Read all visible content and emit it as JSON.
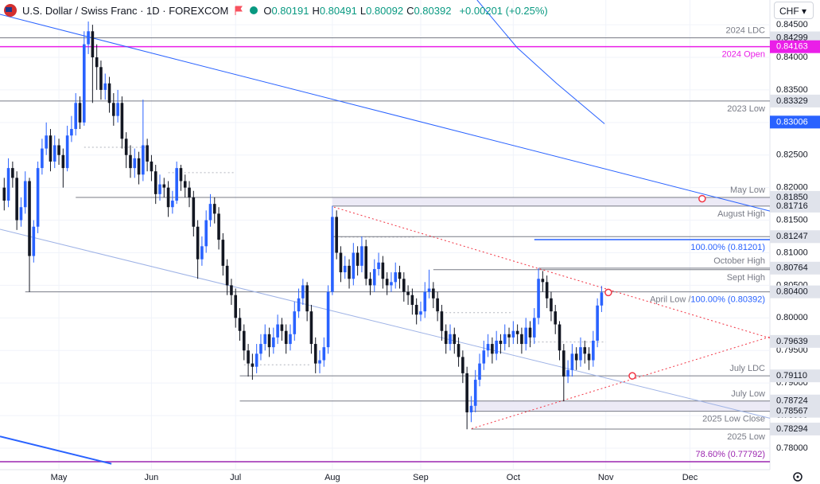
{
  "chart_data": {
    "type": "candlestick",
    "title": "U.S. Dollar / Swiss Franc · 1D · FOREXCOM",
    "legend": [
      {
        "key": "O",
        "value": 0.80191
      },
      {
        "key": "H",
        "value": 0.80491
      },
      {
        "key": "L",
        "value": 0.80092
      },
      {
        "key": "C",
        "value": 0.80392
      }
    ],
    "change": "+0.00201 (+0.25%)",
    "currency": "CHF",
    "up_color": "#2962ff",
    "down_color": "#131722",
    "grid": true,
    "xlim": [
      -1,
      182
    ],
    "ylim": [
      0.7767,
      0.8488
    ],
    "xticks": [
      {
        "value": 13,
        "label": "May"
      },
      {
        "value": 35,
        "label": "Jun"
      },
      {
        "value": 55,
        "label": "Jul"
      },
      {
        "value": 78,
        "label": "Aug"
      },
      {
        "value": 99,
        "label": "Sep"
      },
      {
        "value": 121,
        "label": "Oct"
      },
      {
        "value": 143,
        "label": "Nov"
      },
      {
        "value": 163,
        "label": "Dec"
      }
    ],
    "yticks": [
      {
        "value": 0.845,
        "label": "0.84500"
      },
      {
        "value": 0.84,
        "label": "0.84000"
      },
      {
        "value": 0.835,
        "label": "0.83500"
      },
      {
        "value": 0.83,
        "label": "0.83000"
      },
      {
        "value": 0.825,
        "label": "0.82500"
      },
      {
        "value": 0.82,
        "label": "0.82000"
      },
      {
        "value": 0.815,
        "label": "0.81500"
      },
      {
        "value": 0.81,
        "label": "0.81000"
      },
      {
        "value": 0.805,
        "label": "0.80500"
      },
      {
        "value": 0.8,
        "label": "0.80000"
      },
      {
        "value": 0.795,
        "label": "0.79500"
      },
      {
        "value": 0.79,
        "label": "0.79000"
      },
      {
        "value": 0.785,
        "label": "0.78500"
      },
      {
        "value": 0.78,
        "label": "0.78000"
      }
    ],
    "candles": [
      [
        0.82,
        0.8215,
        0.8165,
        0.818
      ],
      [
        0.818,
        0.8245,
        0.817,
        0.823
      ],
      [
        0.823,
        0.824,
        0.82,
        0.8215
      ],
      [
        0.8215,
        0.8225,
        0.8135,
        0.815
      ],
      [
        0.815,
        0.8185,
        0.814,
        0.817
      ],
      [
        0.817,
        0.8225,
        0.816,
        0.821
      ],
      [
        0.821,
        0.8215,
        0.804,
        0.8095
      ],
      [
        0.8095,
        0.815,
        0.8085,
        0.814
      ],
      [
        0.814,
        0.824,
        0.813,
        0.823
      ],
      [
        0.823,
        0.8275,
        0.822,
        0.826
      ],
      [
        0.826,
        0.83,
        0.825,
        0.828
      ],
      [
        0.828,
        0.829,
        0.8225,
        0.824
      ],
      [
        0.824,
        0.828,
        0.823,
        0.8265
      ],
      [
        0.8265,
        0.8275,
        0.8235,
        0.825
      ],
      [
        0.825,
        0.826,
        0.82,
        0.823
      ],
      [
        0.823,
        0.8295,
        0.8225,
        0.828
      ],
      [
        0.828,
        0.831,
        0.827,
        0.829
      ],
      [
        0.829,
        0.8345,
        0.828,
        0.833
      ],
      [
        0.833,
        0.834,
        0.829,
        0.83
      ],
      [
        0.83,
        0.844,
        0.8295,
        0.842
      ],
      [
        0.842,
        0.8455,
        0.8405,
        0.844
      ],
      [
        0.844,
        0.845,
        0.833,
        0.84
      ],
      [
        0.84,
        0.842,
        0.835,
        0.8385
      ],
      [
        0.8385,
        0.8395,
        0.8335,
        0.835
      ],
      [
        0.835,
        0.8375,
        0.8335,
        0.836
      ],
      [
        0.836,
        0.837,
        0.8315,
        0.833
      ],
      [
        0.833,
        0.8345,
        0.8295,
        0.831
      ],
      [
        0.831,
        0.835,
        0.83,
        0.833
      ],
      [
        0.833,
        0.834,
        0.826,
        0.8275
      ],
      [
        0.8275,
        0.8285,
        0.823,
        0.825
      ],
      [
        0.825,
        0.8265,
        0.8215,
        0.823
      ],
      [
        0.823,
        0.826,
        0.8215,
        0.8245
      ],
      [
        0.8245,
        0.8255,
        0.8205,
        0.822
      ],
      [
        0.822,
        0.8335,
        0.821,
        0.8265
      ],
      [
        0.8265,
        0.8275,
        0.8225,
        0.824
      ],
      [
        0.824,
        0.825,
        0.821,
        0.8225
      ],
      [
        0.8225,
        0.8235,
        0.8175,
        0.819
      ],
      [
        0.819,
        0.822,
        0.818,
        0.8205
      ],
      [
        0.8205,
        0.8215,
        0.8185,
        0.82
      ],
      [
        0.82,
        0.821,
        0.8155,
        0.817
      ],
      [
        0.817,
        0.8195,
        0.816,
        0.818
      ],
      [
        0.818,
        0.824,
        0.8175,
        0.823
      ],
      [
        0.823,
        0.8235,
        0.8195,
        0.821
      ],
      [
        0.821,
        0.822,
        0.8185,
        0.82
      ],
      [
        0.82,
        0.821,
        0.817,
        0.8185
      ],
      [
        0.8185,
        0.8195,
        0.8125,
        0.814
      ],
      [
        0.814,
        0.815,
        0.806,
        0.809
      ],
      [
        0.809,
        0.8125,
        0.808,
        0.811
      ],
      [
        0.811,
        0.8165,
        0.81,
        0.815
      ],
      [
        0.815,
        0.819,
        0.814,
        0.8175
      ],
      [
        0.8175,
        0.8185,
        0.8145,
        0.816
      ],
      [
        0.816,
        0.817,
        0.8105,
        0.812
      ],
      [
        0.812,
        0.813,
        0.8065,
        0.808
      ],
      [
        0.808,
        0.809,
        0.8035,
        0.805
      ],
      [
        0.805,
        0.806,
        0.802,
        0.8035
      ],
      [
        0.8035,
        0.8045,
        0.7985,
        0.8
      ],
      [
        0.8,
        0.8015,
        0.7965,
        0.798
      ],
      [
        0.798,
        0.799,
        0.7935,
        0.795
      ],
      [
        0.795,
        0.796,
        0.791,
        0.793
      ],
      [
        0.793,
        0.7945,
        0.7905,
        0.7925
      ],
      [
        0.7925,
        0.796,
        0.7915,
        0.7945
      ],
      [
        0.7945,
        0.7975,
        0.7935,
        0.796
      ],
      [
        0.796,
        0.799,
        0.795,
        0.7975
      ],
      [
        0.7975,
        0.7985,
        0.794,
        0.7955
      ],
      [
        0.7955,
        0.7985,
        0.7945,
        0.797
      ],
      [
        0.797,
        0.8005,
        0.796,
        0.799
      ],
      [
        0.799,
        0.8,
        0.7965,
        0.798
      ],
      [
        0.798,
        0.799,
        0.7945,
        0.796
      ],
      [
        0.796,
        0.799,
        0.795,
        0.7975
      ],
      [
        0.7975,
        0.8025,
        0.7965,
        0.801
      ],
      [
        0.801,
        0.8045,
        0.8,
        0.803
      ],
      [
        0.803,
        0.806,
        0.802,
        0.805
      ],
      [
        0.805,
        0.8055,
        0.7995,
        0.801
      ],
      [
        0.801,
        0.802,
        0.7945,
        0.796
      ],
      [
        0.796,
        0.797,
        0.7915,
        0.793
      ],
      [
        0.793,
        0.795,
        0.7915,
        0.7935
      ],
      [
        0.7935,
        0.797,
        0.7925,
        0.7955
      ],
      [
        0.7955,
        0.805,
        0.7945,
        0.804
      ],
      [
        0.804,
        0.8172,
        0.8035,
        0.8155
      ],
      [
        0.8155,
        0.8165,
        0.809,
        0.81
      ],
      [
        0.81,
        0.811,
        0.8055,
        0.807
      ],
      [
        0.807,
        0.8095,
        0.806,
        0.808
      ],
      [
        0.808,
        0.809,
        0.8045,
        0.806
      ],
      [
        0.806,
        0.8115,
        0.805,
        0.81
      ],
      [
        0.81,
        0.811,
        0.8065,
        0.808
      ],
      [
        0.808,
        0.8125,
        0.807,
        0.811
      ],
      [
        0.811,
        0.812,
        0.805,
        0.806
      ],
      [
        0.806,
        0.807,
        0.8035,
        0.805
      ],
      [
        0.805,
        0.809,
        0.804,
        0.8075
      ],
      [
        0.8075,
        0.81,
        0.8065,
        0.8085
      ],
      [
        0.8085,
        0.8095,
        0.8045,
        0.806
      ],
      [
        0.806,
        0.807,
        0.8035,
        0.805
      ],
      [
        0.805,
        0.807,
        0.804,
        0.8055
      ],
      [
        0.8055,
        0.8085,
        0.8045,
        0.807
      ],
      [
        0.807,
        0.808,
        0.8045,
        0.806
      ],
      [
        0.806,
        0.807,
        0.8025,
        0.804
      ],
      [
        0.804,
        0.805,
        0.802,
        0.8035
      ],
      [
        0.8035,
        0.8045,
        0.8005,
        0.802
      ],
      [
        0.802,
        0.803,
        0.799,
        0.8005
      ],
      [
        0.8005,
        0.8025,
        0.7995,
        0.801
      ],
      [
        0.801,
        0.8055,
        0.8,
        0.804
      ],
      [
        0.804,
        0.8074,
        0.803,
        0.8045
      ],
      [
        0.8045,
        0.8055,
        0.8015,
        0.803
      ],
      [
        0.803,
        0.804,
        0.7995,
        0.801
      ],
      [
        0.801,
        0.802,
        0.7965,
        0.798
      ],
      [
        0.798,
        0.799,
        0.7945,
        0.796
      ],
      [
        0.796,
        0.799,
        0.795,
        0.7975
      ],
      [
        0.7975,
        0.7985,
        0.7945,
        0.796
      ],
      [
        0.796,
        0.797,
        0.7925,
        0.794
      ],
      [
        0.794,
        0.795,
        0.79,
        0.7915
      ],
      [
        0.7915,
        0.7925,
        0.7829,
        0.7855
      ],
      [
        0.7855,
        0.788,
        0.784,
        0.7865
      ],
      [
        0.7865,
        0.792,
        0.7855,
        0.7905
      ],
      [
        0.7905,
        0.7945,
        0.7895,
        0.793
      ],
      [
        0.793,
        0.7965,
        0.792,
        0.795
      ],
      [
        0.795,
        0.7975,
        0.794,
        0.796
      ],
      [
        0.796,
        0.797,
        0.793,
        0.7945
      ],
      [
        0.7945,
        0.798,
        0.7935,
        0.7965
      ],
      [
        0.7965,
        0.7975,
        0.7945,
        0.796
      ],
      [
        0.796,
        0.799,
        0.795,
        0.7975
      ],
      [
        0.7975,
        0.7985,
        0.7955,
        0.797
      ],
      [
        0.797,
        0.7995,
        0.796,
        0.798
      ],
      [
        0.798,
        0.799,
        0.796,
        0.7975
      ],
      [
        0.7975,
        0.7985,
        0.7945,
        0.796
      ],
      [
        0.796,
        0.8,
        0.795,
        0.7985
      ],
      [
        0.7985,
        0.7995,
        0.7955,
        0.797
      ],
      [
        0.797,
        0.8015,
        0.796,
        0.8
      ],
      [
        0.8,
        0.8076,
        0.799,
        0.806
      ],
      [
        0.806,
        0.8072,
        0.804,
        0.8055
      ],
      [
        0.8055,
        0.8065,
        0.8015,
        0.803
      ],
      [
        0.803,
        0.804,
        0.7995,
        0.801
      ],
      [
        0.801,
        0.802,
        0.7975,
        0.799
      ],
      [
        0.799,
        0.7995,
        0.7935,
        0.795
      ],
      [
        0.795,
        0.796,
        0.7872,
        0.791
      ],
      [
        0.791,
        0.7935,
        0.79,
        0.792
      ],
      [
        0.792,
        0.796,
        0.791,
        0.7945
      ],
      [
        0.7945,
        0.7955,
        0.792,
        0.7935
      ],
      [
        0.7935,
        0.797,
        0.7925,
        0.7955
      ],
      [
        0.7955,
        0.7965,
        0.793,
        0.7945
      ],
      [
        0.7945,
        0.7955,
        0.792,
        0.7935
      ],
      [
        0.7935,
        0.798,
        0.7925,
        0.7965
      ],
      [
        0.7965,
        0.803,
        0.7955,
        0.8019
      ],
      [
        0.8019,
        0.8049,
        0.8009,
        0.8039
      ]
    ],
    "levels": [
      {
        "value": 0.84299,
        "start": -1,
        "color": "#787b86",
        "note": "2024 LDC",
        "note_pos": "above",
        "badge": "gray"
      },
      {
        "value": 0.84163,
        "start": -1,
        "color": "#ea1ee8",
        "note": "2024 Open",
        "note_pos": "below",
        "badge": "color"
      },
      {
        "value": 0.83329,
        "start": -1,
        "color": "#787b86",
        "note": "2023 Low",
        "note_pos": "below",
        "badge": "gray"
      },
      {
        "value": 0.83006,
        "color": "#2962ff",
        "badge": "color",
        "line": false
      },
      {
        "value": 0.8185,
        "label": "0.81850",
        "start": 17,
        "color": "#787b86",
        "note": "May Low",
        "note_pos": "above",
        "badge": "gray",
        "shade": true
      },
      {
        "value": 0.81716,
        "start": 78,
        "color": "#787b86",
        "note": "August High",
        "note_pos": "below",
        "badge": "gray"
      },
      {
        "value": 0.81247,
        "start": 78,
        "color": "#787b86",
        "badge": "gray"
      },
      {
        "value": 0.81201,
        "start": 126,
        "color": "#2962ff",
        "note": "100.00% (0.81201)",
        "note_pos": "below"
      },
      {
        "value": 0.80764,
        "start": 127,
        "color": "#787b86",
        "note": "October High",
        "note_pos": "above",
        "badge": "gray"
      },
      {
        "value": 0.8074,
        "start": 102,
        "color": "#787b86",
        "note": "Sept High",
        "note_pos": "below"
      },
      {
        "value": 0.804,
        "label": "0.80400",
        "start": 5,
        "color": "#787b86",
        "note": "April Low /",
        "note2": "100.00% (0.80392)",
        "note2_color": "#2962ff",
        "note_pos": "below",
        "badge": "gray"
      },
      {
        "value": 0.79639,
        "color": "#787b86",
        "badge": "gray",
        "line": false
      },
      {
        "value": 0.7911,
        "label": "0.79110",
        "start": 56,
        "color": "#787b86",
        "note": "July LDC",
        "note_pos": "above",
        "badge": "gray"
      },
      {
        "value": 0.78724,
        "start": 56,
        "color": "#787b86",
        "note": "July Low",
        "note_pos": "above",
        "badge": "gray",
        "shade": true
      },
      {
        "value": 0.78567,
        "start": 111,
        "color": "#787b86",
        "note": "2025 Low Close",
        "note_pos": "below",
        "badge": "gray"
      },
      {
        "value": 0.78294,
        "start": 111,
        "color": "#787b86",
        "note": "2025 Low",
        "note_pos": "below",
        "badge": "gray"
      },
      {
        "value": 0.77792,
        "start": -1,
        "color": "#9c27b0",
        "note": "78.60% (0.77792)",
        "note_pos": "above"
      }
    ],
    "trendlines": [
      {
        "color": "#2962ff",
        "width": 1,
        "x": [
          -1,
          182
        ],
        "y": [
          0.8466,
          0.8164
        ]
      },
      {
        "color": "#9fb3e6",
        "width": 1,
        "x": [
          -1,
          182
        ],
        "y": [
          0.8136,
          0.7846
        ]
      },
      {
        "color": "#2962ff",
        "width": 1,
        "x": [
          112.4,
          121.9,
          131.3,
          142.7
        ],
        "y": [
          0.8488,
          0.8415,
          0.836,
          0.8298
        ]
      },
      {
        "color": "#2962ff",
        "width": 2,
        "x": [
          -1,
          25.5
        ],
        "y": [
          0.7818,
          0.7776
        ]
      },
      {
        "color": "#f23645",
        "width": 1,
        "dash": true,
        "x": [
          78.4,
          182
        ],
        "y": [
          0.817,
          0.7969
        ]
      },
      {
        "color": "#f23645",
        "width": 1,
        "dash": true,
        "x": [
          111.1,
          182
        ],
        "y": [
          0.783,
          0.7971
        ]
      }
    ],
    "markers": [
      {
        "x": 165.9,
        "y": 0.8183
      },
      {
        "x": 143.6,
        "y": 0.8039
      },
      {
        "x": 149.3,
        "y": 0.7911
      }
    ],
    "pivots": [
      {
        "value": 0.8262,
        "from": 19,
        "to": 34
      },
      {
        "value": 0.8223,
        "from": 39,
        "to": 55
      },
      {
        "value": 0.8124,
        "from": 80,
        "to": 98
      },
      {
        "value": 0.8008,
        "from": 103,
        "to": 121
      },
      {
        "value": 0.7963,
        "from": 125,
        "to": 143
      },
      {
        "value": 0.7928,
        "from": 57,
        "to": 73
      }
    ]
  }
}
